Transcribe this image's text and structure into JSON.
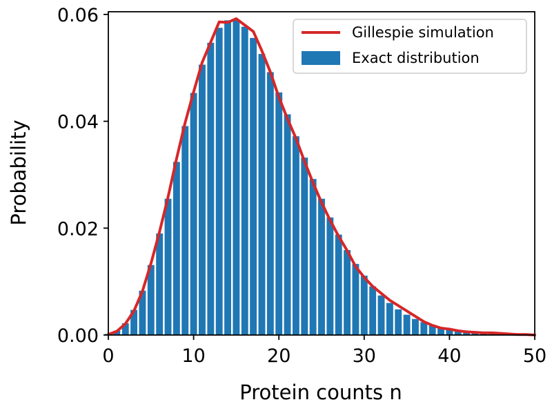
{
  "chart_data": {
    "type": "bar",
    "xlabel": "Protein counts n",
    "ylabel": "Probability",
    "xlim": [
      0,
      50
    ],
    "ylim": [
      0,
      0.0605
    ],
    "xticks": [
      "0",
      "10",
      "20",
      "30",
      "40",
      "50"
    ],
    "yticks": [
      "0.00",
      "0.02",
      "0.04",
      "0.06"
    ],
    "grid": false,
    "legend_position": "top-right",
    "colors": {
      "bars": "#1f77b4",
      "line": "#d62728",
      "axis": "#000000"
    },
    "series": [
      {
        "name": "Exact distribution",
        "type": "bar",
        "x": [
          0,
          1,
          2,
          3,
          4,
          5,
          6,
          7,
          8,
          9,
          10,
          11,
          12,
          13,
          14,
          15,
          16,
          17,
          18,
          19,
          20,
          21,
          22,
          23,
          24,
          25,
          26,
          27,
          28,
          29,
          30,
          31,
          32,
          33,
          34,
          35,
          36,
          37,
          38,
          39,
          40,
          41,
          42,
          43,
          44,
          45,
          46,
          47,
          48,
          49
        ],
        "values": [
          0.0002,
          0.0008,
          0.0022,
          0.0047,
          0.0083,
          0.0131,
          0.019,
          0.0255,
          0.0324,
          0.0391,
          0.0453,
          0.0506,
          0.0547,
          0.0575,
          0.0589,
          0.0589,
          0.0577,
          0.0556,
          0.0526,
          0.0492,
          0.0454,
          0.0413,
          0.0372,
          0.0332,
          0.0292,
          0.0255,
          0.022,
          0.0188,
          0.0159,
          0.0133,
          0.0111,
          0.0091,
          0.0074,
          0.006,
          0.0048,
          0.0038,
          0.003,
          0.0024,
          0.0018,
          0.0014,
          0.0011,
          0.0008,
          0.0006,
          0.0005,
          0.0004,
          0.0003,
          0.0002,
          0.0002,
          0.0001,
          0.0001
        ]
      },
      {
        "name": "Gillespie simulation",
        "type": "line",
        "x": [
          0,
          1,
          2,
          3,
          4,
          5,
          6,
          7,
          8,
          9,
          10,
          11,
          12,
          13,
          14,
          15,
          16,
          17,
          18,
          19,
          20,
          21,
          22,
          23,
          24,
          25,
          26,
          27,
          28,
          29,
          30,
          31,
          32,
          33,
          34,
          35,
          36,
          37,
          38,
          39,
          40,
          41,
          42,
          43,
          44,
          45,
          46,
          47,
          48,
          49,
          50
        ],
        "values": [
          0.0001,
          0.0007,
          0.0021,
          0.0045,
          0.0082,
          0.0134,
          0.0193,
          0.0258,
          0.033,
          0.0397,
          0.0455,
          0.051,
          0.0548,
          0.0586,
          0.0585,
          0.0592,
          0.058,
          0.0568,
          0.0532,
          0.0492,
          0.0445,
          0.0405,
          0.0368,
          0.0325,
          0.0285,
          0.0248,
          0.0215,
          0.0185,
          0.0158,
          0.0128,
          0.0108,
          0.0091,
          0.0078,
          0.0065,
          0.0055,
          0.0045,
          0.0035,
          0.0025,
          0.0018,
          0.0013,
          0.0011,
          0.0008,
          0.0006,
          0.0005,
          0.0004,
          0.0004,
          0.0003,
          0.0002,
          0.0001,
          0.0001,
          0.0
        ]
      }
    ]
  }
}
